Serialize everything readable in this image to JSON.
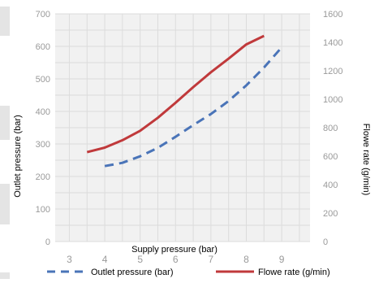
{
  "chart_data": {
    "type": "line",
    "title": "",
    "xlabel": "Supply pressure (bar)",
    "ylabel": "Outlet pressure (bar)",
    "y2label": "Flowe rate (g/min)",
    "xlim": [
      2.6,
      9.8
    ],
    "ylim": [
      0,
      700
    ],
    "y2lim": [
      0,
      1600
    ],
    "x_ticks": [
      3,
      4,
      5,
      6,
      7,
      8,
      9
    ],
    "y_ticks": [
      0,
      100,
      200,
      300,
      400,
      500,
      600,
      700
    ],
    "y2_ticks": [
      0,
      200,
      400,
      600,
      800,
      1000,
      1200,
      1400,
      1600
    ],
    "grid": true,
    "legend_position": "bottom",
    "series": [
      {
        "name": "Outlet pressure (bar)",
        "axis": "left",
        "style": "dashed",
        "color": "#4a74b8",
        "x": [
          4,
          4.5,
          5,
          5.5,
          6,
          6.5,
          7,
          7.5,
          8,
          8.5,
          9
        ],
        "values": [
          232,
          242,
          262,
          288,
          322,
          358,
          392,
          432,
          480,
          535,
          597
        ]
      },
      {
        "name": "Flowe rate (g/min)",
        "axis": "right",
        "style": "solid",
        "color": "#c0393b",
        "x": [
          3.5,
          4,
          4.5,
          5,
          5.5,
          6,
          6.5,
          7,
          7.5,
          8,
          8.5
        ],
        "values": [
          628,
          660,
          712,
          778,
          870,
          975,
          1085,
          1190,
          1285,
          1385,
          1445
        ]
      }
    ]
  }
}
